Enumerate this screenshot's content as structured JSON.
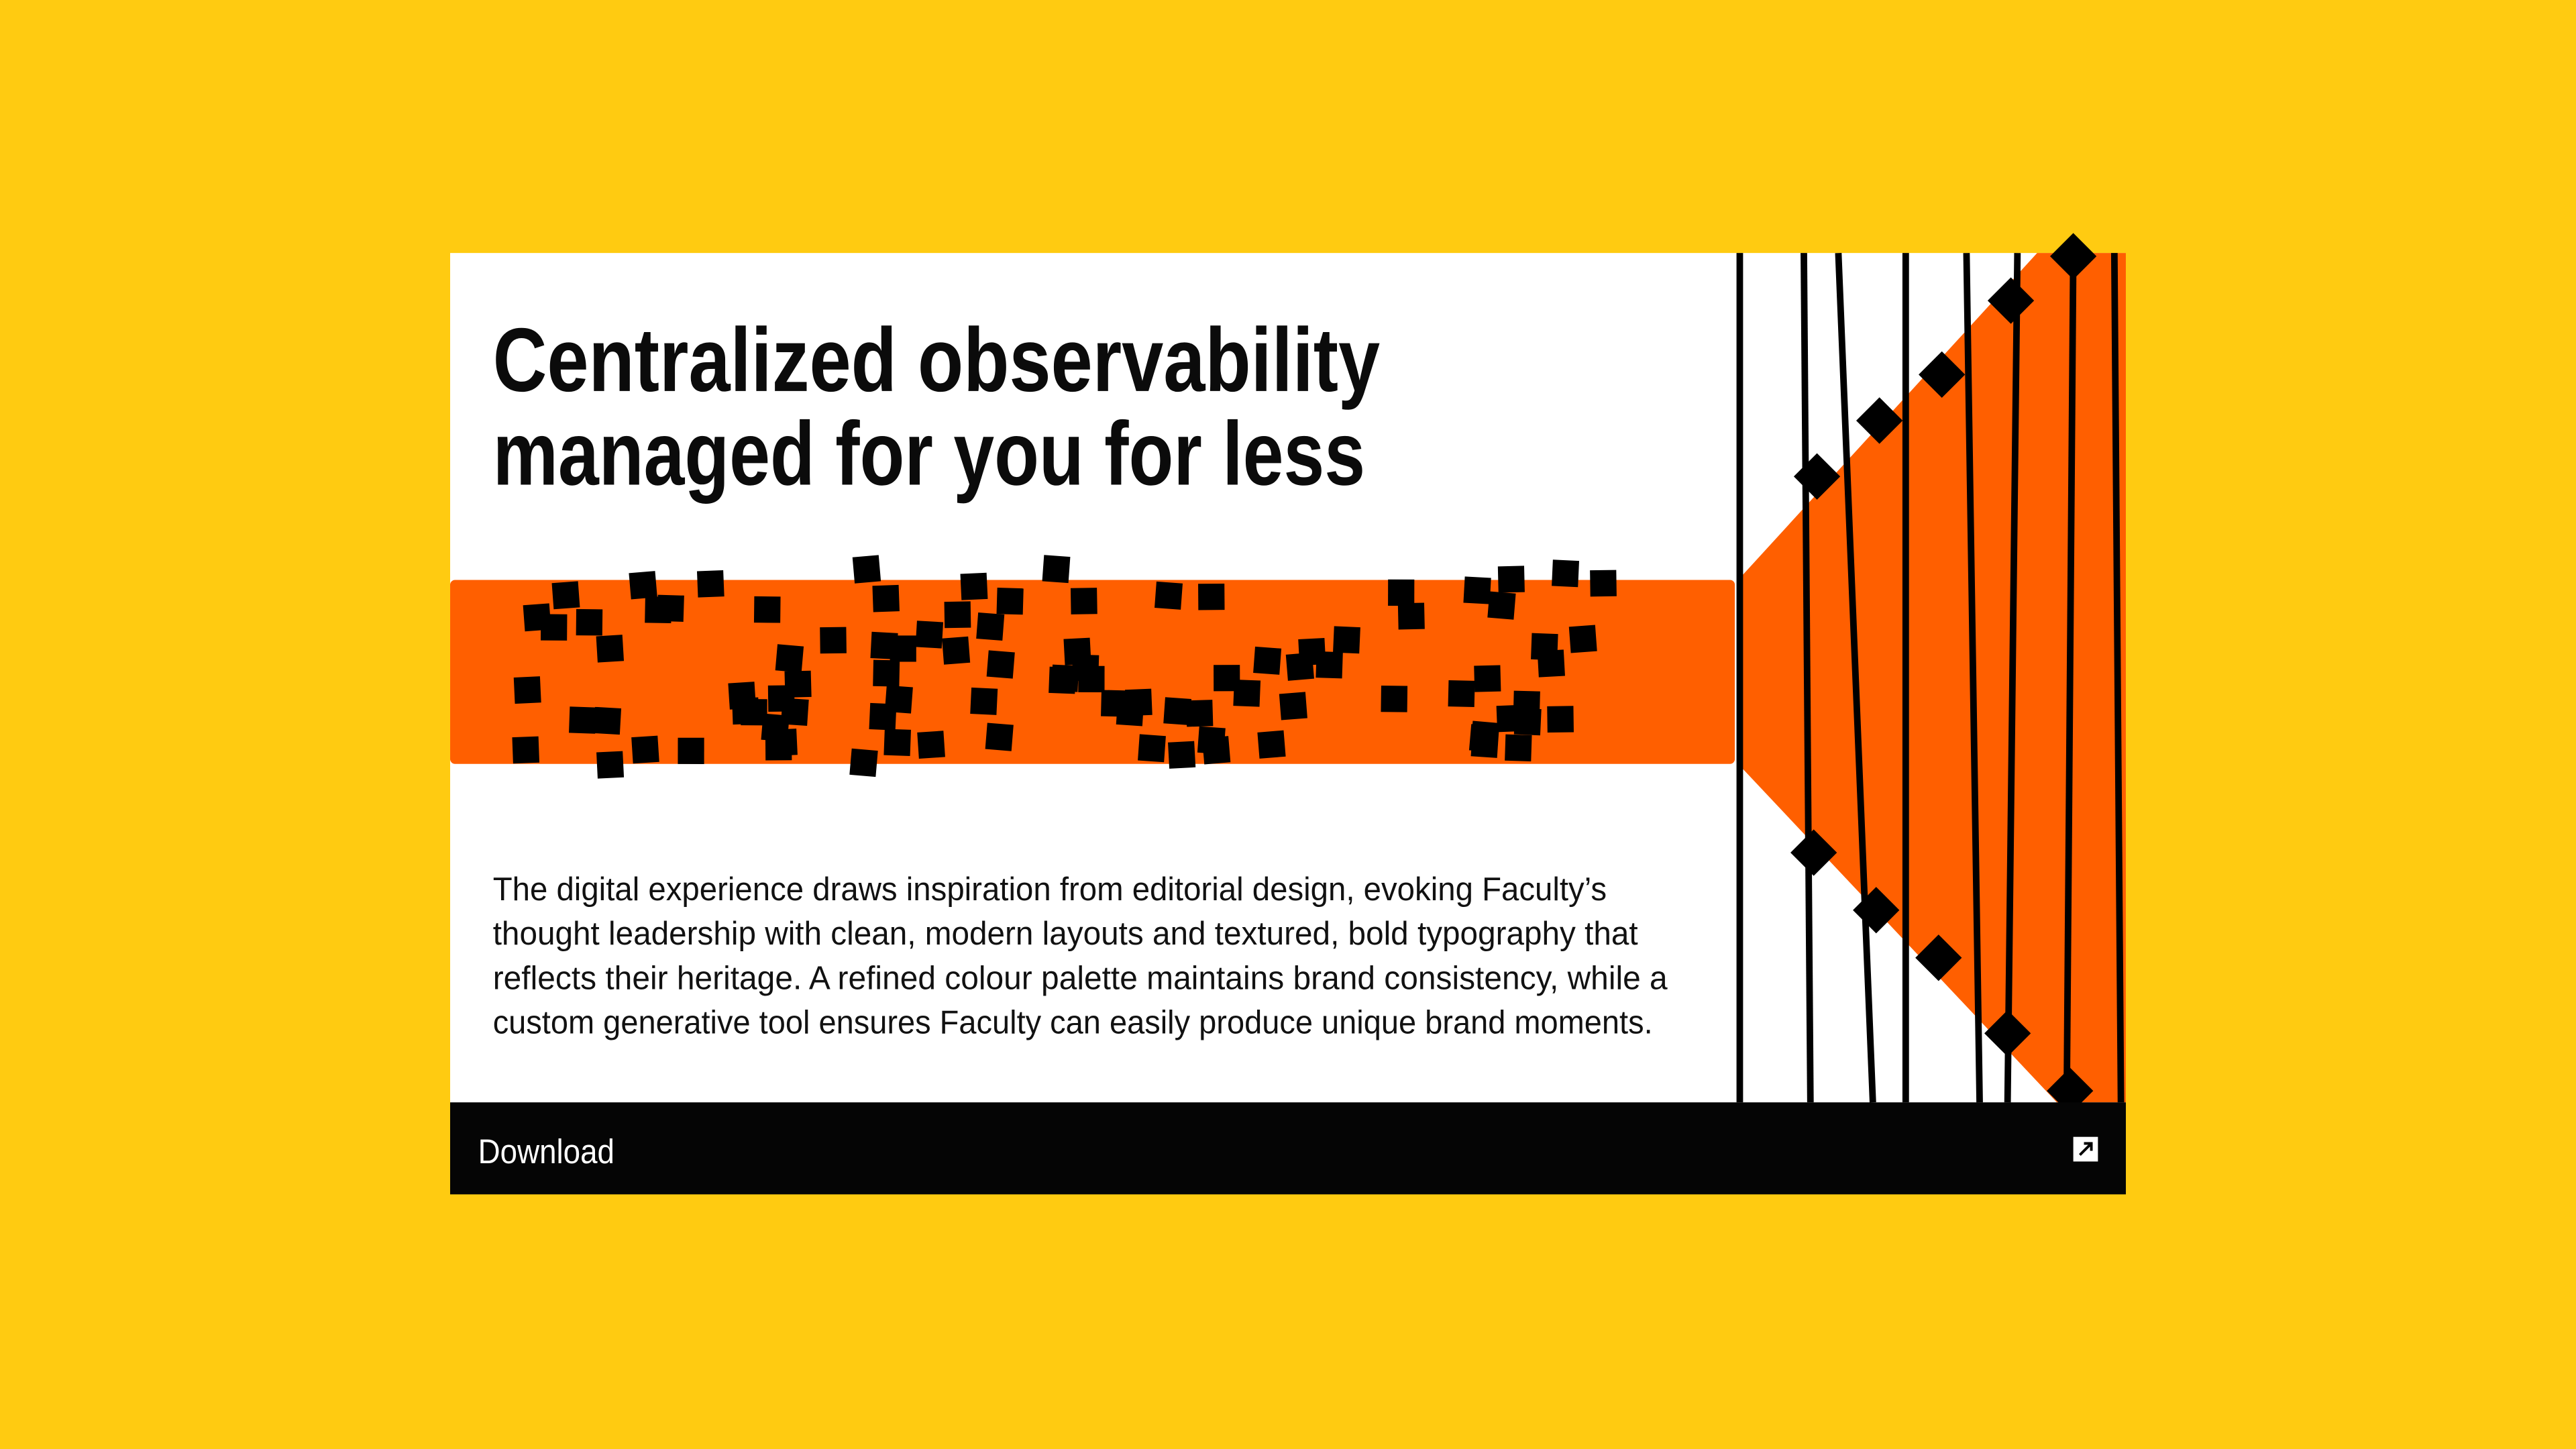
{
  "card": {
    "title_lines": [
      "Centralized observability",
      "managed for you for less"
    ],
    "body_lines": [
      "The digital experience draws inspiration from editorial design, evoking Faculty’s",
      "thought leadership with clean, modern layouts and textured, bold typography that",
      "reflects their heritage. A refined colour palette maintains brand consistency, while a",
      "custom generative tool ensures Faculty can easily produce unique brand moments."
    ],
    "button": "Download"
  }
}
